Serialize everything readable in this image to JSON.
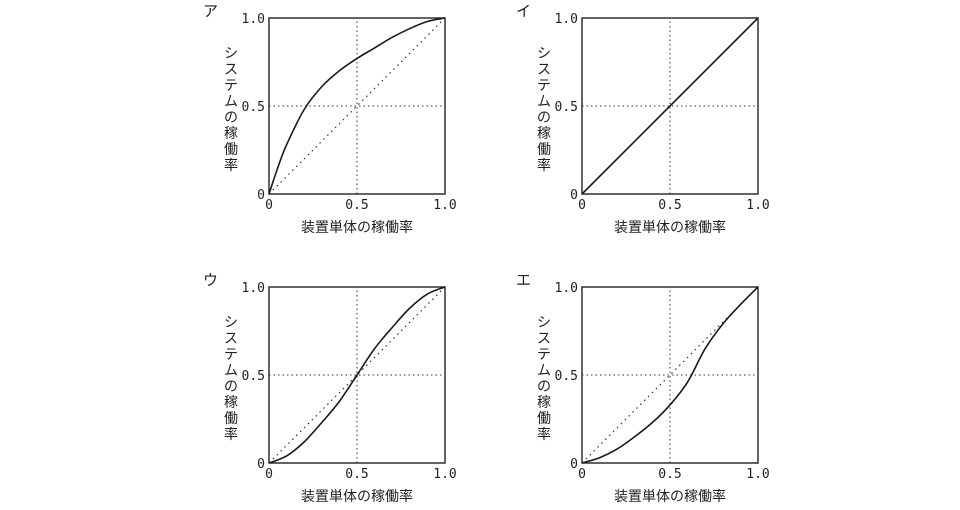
{
  "chart_data": [
    {
      "type": "line",
      "panel_label": "ア",
      "xlabel": "装置単体の稼働率",
      "ylabel": "システムの稼働率",
      "xlim": [
        0,
        1
      ],
      "ylim": [
        0,
        1
      ],
      "x_ticks": [
        "0",
        "0.5",
        "1.0"
      ],
      "y_ticks": [
        "0",
        "0.5",
        "1.0"
      ],
      "reference": "y=x dotted, dotted gridlines at 0.5",
      "series": [
        {
          "x": [
            0,
            0.05,
            0.1,
            0.2,
            0.3,
            0.4,
            0.5,
            0.6,
            0.7,
            0.8,
            0.9,
            1.0
          ],
          "values": [
            0,
            0.15,
            0.28,
            0.48,
            0.61,
            0.7,
            0.77,
            0.83,
            0.89,
            0.94,
            0.98,
            1.0
          ]
        }
      ]
    },
    {
      "type": "line",
      "panel_label": "イ",
      "xlabel": "装置単体の稼働率",
      "ylabel": "システムの稼働率",
      "xlim": [
        0,
        1
      ],
      "ylim": [
        0,
        1
      ],
      "x_ticks": [
        "0",
        "0.5",
        "1.0"
      ],
      "y_ticks": [
        "0",
        "0.5",
        "1.0"
      ],
      "reference": "dotted gridlines at 0.5",
      "series": [
        {
          "x": [
            0,
            0.5,
            1.0
          ],
          "values": [
            0,
            0.5,
            1.0
          ]
        }
      ]
    },
    {
      "type": "line",
      "panel_label": "ウ",
      "xlabel": "装置単体の稼働率",
      "ylabel": "システムの稼働率",
      "xlim": [
        0,
        1
      ],
      "ylim": [
        0,
        1
      ],
      "x_ticks": [
        "0",
        "0.5",
        "1.0"
      ],
      "y_ticks": [
        "0",
        "0.5",
        "1.0"
      ],
      "reference": "y=x dotted, dotted gridlines at 0.5",
      "series": [
        {
          "x": [
            0,
            0.1,
            0.2,
            0.3,
            0.4,
            0.5,
            0.6,
            0.7,
            0.8,
            0.9,
            1.0
          ],
          "values": [
            0,
            0.04,
            0.12,
            0.23,
            0.35,
            0.5,
            0.65,
            0.77,
            0.88,
            0.96,
            1.0
          ]
        }
      ]
    },
    {
      "type": "line",
      "panel_label": "エ",
      "xlabel": "装置単体の稼働率",
      "ylabel": "システムの稼働率",
      "xlim": [
        0,
        1
      ],
      "ylim": [
        0,
        1
      ],
      "x_ticks": [
        "0",
        "0.5",
        "1.0"
      ],
      "y_ticks": [
        "0",
        "0.5",
        "1.0"
      ],
      "reference": "y=x dotted, dotted gridlines at 0.5",
      "series": [
        {
          "x": [
            0,
            0.1,
            0.2,
            0.3,
            0.4,
            0.5,
            0.6,
            0.7,
            0.8,
            0.9,
            1.0
          ],
          "values": [
            0,
            0.03,
            0.08,
            0.15,
            0.23,
            0.33,
            0.46,
            0.65,
            0.79,
            0.9,
            1.0
          ]
        }
      ]
    }
  ]
}
